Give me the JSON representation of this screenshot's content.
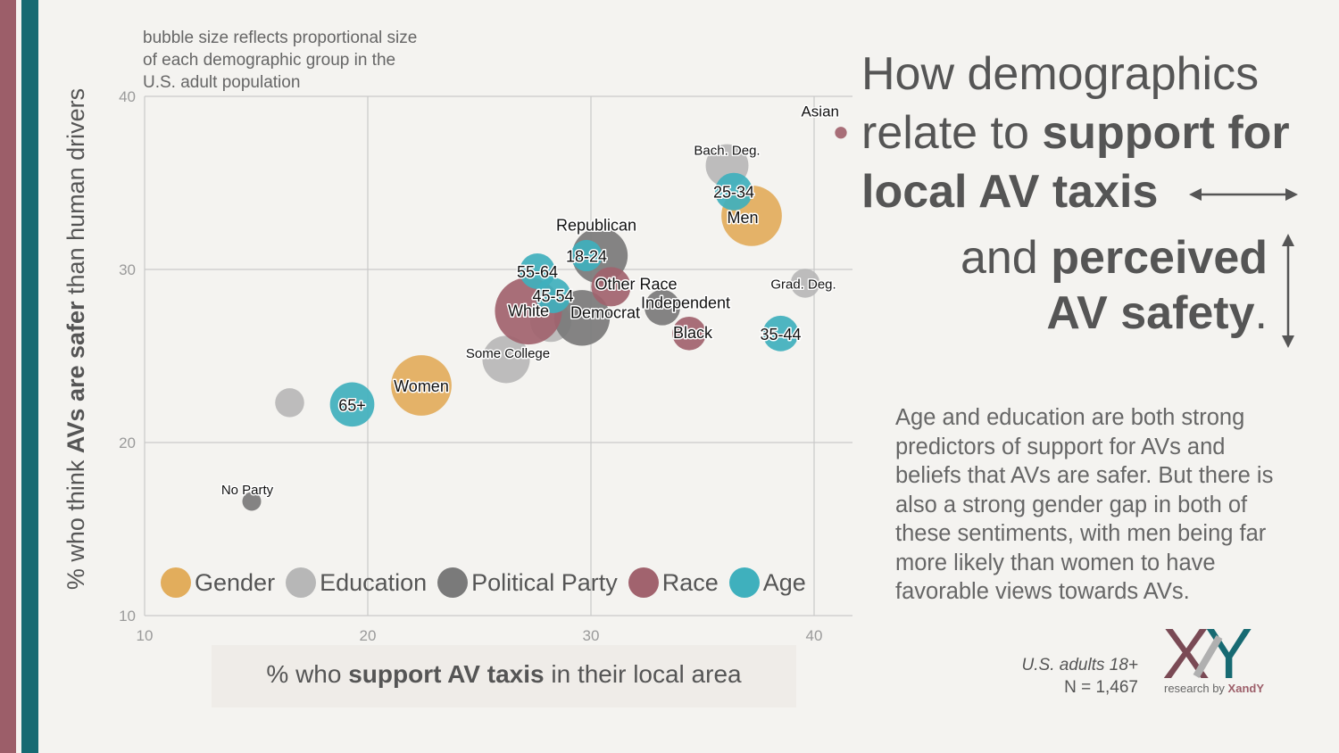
{
  "note": "bubble size reflects proportional size of each demographic group in the U.S. adult population",
  "title": {
    "line1_pre": "How demographics",
    "line2_pre": "relate to ",
    "line2_bold": "support for",
    "line3_bold": "local AV taxis",
    "line4_pre": "and ",
    "line4_bold": "perceived",
    "line5_bold": "AV safety",
    "line5_post": "."
  },
  "description": "Age and education are both strong predictors of support for AVs and beliefs that AVs are safer. But there is also a strong gender gap in both of these sentiments, with men being far more likely than women to have favorable views towards AVs.",
  "sample": {
    "line1": "U.S. adults 18+",
    "line2": "N = 1,467"
  },
  "logo": {
    "letters": "XY",
    "sub_pre": "research by ",
    "sub_brand": "XandY"
  },
  "colors": {
    "Gender": "#e2ad5c",
    "Education": "#b7b7b7",
    "Political Party": "#7a7a7a",
    "Race": "#a1636e",
    "Age": "#3fb0bd",
    "brand_red": "#9c5e69",
    "brand_teal": "#176a72"
  },
  "chart_data": {
    "type": "scatter",
    "title": "",
    "xlabel_pre": "% who ",
    "xlabel_bold": "support AV taxis",
    "xlabel_post": " in their local area",
    "ylabel_pre": "% who think ",
    "ylabel_bold": "AVs are safer",
    "ylabel_post": " than human drivers",
    "xlim": [
      10,
      42
    ],
    "ylim": [
      10,
      40
    ],
    "xticks": [
      10,
      20,
      30,
      40
    ],
    "yticks": [
      10,
      20,
      30,
      40
    ],
    "grid": true,
    "legend_position": "bottom-left",
    "legend": [
      "Gender",
      "Education",
      "Political Party",
      "Race",
      "Age"
    ],
    "points": [
      {
        "label": "",
        "group": "Education",
        "x": 16.5,
        "y": 22.3,
        "size": 0.6
      },
      {
        "label": "Some College",
        "group": "Education",
        "x": 26.2,
        "y": 24.8,
        "size": 1.6
      },
      {
        "label": "",
        "group": "Education",
        "x": 28.2,
        "y": 27.0,
        "size": 1.2
      },
      {
        "label": "Bach. Deg.",
        "group": "Education",
        "x": 36.1,
        "y": 36.0,
        "size": 1.3
      },
      {
        "label": "Grad. Deg.",
        "group": "Education",
        "x": 39.6,
        "y": 29.2,
        "size": 0.6
      },
      {
        "label": "Republican",
        "group": "Political Party",
        "x": 30.4,
        "y": 30.8,
        "size": 2.2
      },
      {
        "label": "Democrat",
        "group": "Political Party",
        "x": 29.6,
        "y": 27.2,
        "size": 2.2
      },
      {
        "label": "Independent",
        "group": "Political Party",
        "x": 33.2,
        "y": 27.8,
        "size": 0.9
      },
      {
        "label": "No Party",
        "group": "Political Party",
        "x": 14.8,
        "y": 16.6,
        "size": 0.25
      },
      {
        "label": "White",
        "group": "Race",
        "x": 27.2,
        "y": 27.6,
        "size": 3.2
      },
      {
        "label": "Other Race",
        "group": "Race",
        "x": 30.9,
        "y": 29.0,
        "size": 1.1
      },
      {
        "label": "Black",
        "group": "Race",
        "x": 34.4,
        "y": 26.3,
        "size": 0.8
      },
      {
        "label": "Asian",
        "group": "Race",
        "x": 41.2,
        "y": 37.9,
        "size": 0.1
      },
      {
        "label": "Women",
        "group": "Gender",
        "x": 22.4,
        "y": 23.3,
        "size": 2.6
      },
      {
        "label": "Men",
        "group": "Gender",
        "x": 37.2,
        "y": 33.1,
        "size": 2.6
      },
      {
        "label": "25-34",
        "group": "Age",
        "x": 36.4,
        "y": 34.5,
        "size": 1.0
      },
      {
        "label": "18-24",
        "group": "Age",
        "x": 29.8,
        "y": 30.8,
        "size": 0.7
      },
      {
        "label": "55-64",
        "group": "Age",
        "x": 27.6,
        "y": 29.9,
        "size": 0.9
      },
      {
        "label": "45-54",
        "group": "Age",
        "x": 28.3,
        "y": 28.5,
        "size": 0.9
      },
      {
        "label": "35-44",
        "group": "Age",
        "x": 38.5,
        "y": 26.3,
        "size": 0.9
      },
      {
        "label": "65+",
        "group": "Age",
        "x": 19.3,
        "y": 22.2,
        "size": 1.4
      }
    ]
  }
}
